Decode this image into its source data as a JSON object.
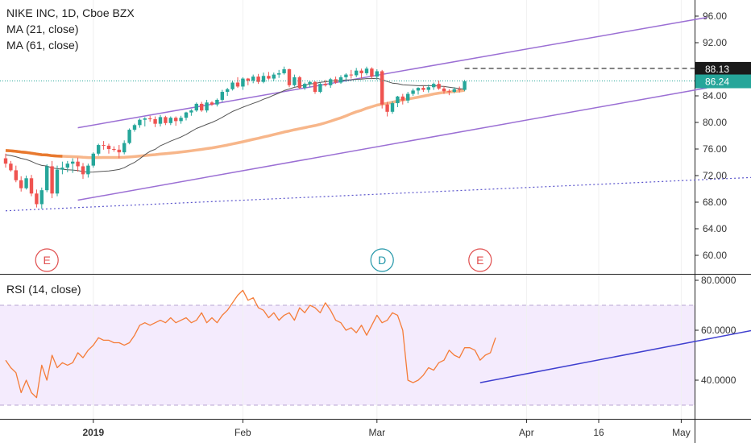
{
  "main_legend": {
    "title": "NIKE INC, 1D, Cboe BZX",
    "ma21": "MA (21, close)",
    "ma61": "MA (61, close)"
  },
  "rsi_legend": {
    "title": "RSI (14, close)"
  },
  "chart_data": [
    {
      "type": "candlestick",
      "ylim": [
        57.5,
        97.5
      ],
      "yticks": [
        "96.00",
        "92.00",
        "88.00",
        "84.00",
        "80.00",
        "76.00",
        "72.00",
        "68.00",
        "64.00",
        "60.00"
      ],
      "price_labels": [
        {
          "label": "88.13",
          "value": 88.13
        },
        {
          "label": "86.24",
          "value": 86.24
        }
      ],
      "ohlc": [
        [
          74.6,
          75.3,
          73.2,
          73.8
        ],
        [
          73.8,
          74.2,
          72.6,
          72.8
        ],
        [
          72.8,
          73.5,
          71.0,
          71.3
        ],
        [
          71.3,
          71.9,
          69.6,
          70.1
        ],
        [
          70.1,
          72.0,
          69.9,
          71.6
        ],
        [
          71.6,
          72.1,
          68.9,
          69.3
        ],
        [
          69.3,
          69.9,
          67.2,
          67.7
        ],
        [
          67.7,
          70.2,
          67.0,
          69.8
        ],
        [
          69.8,
          73.7,
          69.5,
          73.4
        ],
        [
          73.4,
          74.2,
          68.6,
          69.3
        ],
        [
          69.3,
          73.5,
          68.9,
          72.9
        ],
        [
          72.9,
          74.1,
          72.2,
          73.2
        ],
        [
          73.2,
          74.2,
          72.5,
          73.8
        ],
        [
          73.8,
          74.6,
          72.4,
          74.1
        ],
        [
          74.1,
          74.7,
          72.6,
          73.4
        ],
        [
          73.4,
          73.9,
          71.5,
          72.2
        ],
        [
          72.2,
          73.8,
          71.7,
          73.5
        ],
        [
          73.5,
          75.5,
          73.2,
          75.3
        ],
        [
          75.3,
          76.8,
          75.0,
          76.6
        ],
        [
          76.6,
          77.2,
          75.9,
          76.5
        ],
        [
          76.5,
          76.8,
          75.3,
          76.0
        ],
        [
          76.0,
          76.4,
          75.6,
          75.9
        ],
        [
          75.9,
          76.6,
          74.6,
          75.5
        ],
        [
          75.5,
          77.3,
          75.2,
          76.9
        ],
        [
          76.9,
          79.1,
          76.7,
          78.9
        ],
        [
          78.9,
          79.8,
          78.6,
          79.6
        ],
        [
          79.6,
          80.6,
          79.2,
          80.4
        ],
        [
          80.4,
          80.8,
          79.4,
          80.6
        ],
        [
          80.6,
          81.0,
          80.1,
          80.5
        ],
        [
          80.5,
          80.9,
          79.3,
          79.8
        ],
        [
          79.8,
          81.1,
          79.4,
          80.8
        ],
        [
          80.8,
          81.0,
          79.6,
          79.9
        ],
        [
          79.9,
          80.9,
          79.6,
          80.7
        ],
        [
          80.7,
          80.9,
          79.5,
          80.2
        ],
        [
          80.2,
          81.0,
          79.8,
          80.7
        ],
        [
          80.7,
          81.6,
          80.3,
          81.5
        ],
        [
          81.5,
          82.0,
          81.0,
          81.8
        ],
        [
          81.8,
          83.0,
          81.6,
          82.8
        ],
        [
          82.8,
          83.1,
          81.6,
          81.8
        ],
        [
          81.8,
          83.4,
          81.5,
          83.0
        ],
        [
          83.0,
          83.2,
          82.5,
          82.7
        ],
        [
          82.7,
          83.6,
          82.4,
          83.4
        ],
        [
          83.4,
          84.9,
          83.1,
          84.6
        ],
        [
          84.6,
          85.2,
          84.0,
          85.0
        ],
        [
          85.0,
          86.3,
          84.8,
          86.0
        ],
        [
          86.0,
          86.8,
          85.2,
          85.4
        ],
        [
          85.4,
          86.8,
          84.9,
          86.6
        ],
        [
          86.6,
          86.7,
          85.6,
          86.3
        ],
        [
          86.3,
          87.2,
          85.9,
          86.9
        ],
        [
          86.9,
          87.3,
          85.8,
          86.1
        ],
        [
          86.1,
          87.5,
          85.9,
          87.0
        ],
        [
          87.0,
          87.6,
          86.4,
          86.6
        ],
        [
          86.6,
          87.5,
          86.3,
          87.2
        ],
        [
          87.2,
          87.9,
          86.7,
          87.4
        ],
        [
          87.4,
          88.4,
          87.2,
          88.0
        ],
        [
          88.0,
          88.1,
          85.3,
          85.6
        ],
        [
          85.6,
          87.2,
          85.4,
          86.8
        ],
        [
          86.8,
          87.0,
          85.0,
          85.2
        ],
        [
          85.2,
          86.0,
          84.9,
          85.8
        ],
        [
          85.8,
          86.3,
          85.3,
          86.1
        ],
        [
          86.1,
          86.2,
          84.3,
          84.6
        ],
        [
          84.6,
          86.0,
          84.4,
          85.8
        ],
        [
          85.8,
          86.4,
          85.4,
          85.6
        ],
        [
          85.6,
          86.7,
          85.2,
          86.5
        ],
        [
          86.5,
          86.9,
          85.8,
          86.0
        ],
        [
          86.0,
          87.1,
          85.8,
          86.8
        ],
        [
          86.8,
          87.4,
          86.1,
          87.2
        ],
        [
          87.2,
          87.9,
          86.6,
          87.1
        ],
        [
          87.1,
          88.2,
          86.8,
          87.8
        ],
        [
          87.8,
          88.1,
          86.6,
          87.4
        ],
        [
          87.4,
          88.4,
          87.1,
          88.1
        ],
        [
          88.1,
          88.3,
          86.6,
          86.9
        ],
        [
          86.9,
          88.0,
          86.4,
          87.7
        ],
        [
          87.7,
          87.9,
          82.1,
          82.7
        ],
        [
          82.7,
          83.1,
          80.9,
          81.6
        ],
        [
          81.6,
          83.2,
          81.3,
          82.9
        ],
        [
          82.9,
          84.0,
          82.3,
          83.9
        ],
        [
          83.9,
          84.3,
          82.7,
          83.3
        ],
        [
          83.3,
          84.6,
          82.9,
          84.3
        ],
        [
          84.3,
          85.1,
          84.0,
          84.8
        ],
        [
          84.8,
          85.3,
          84.2,
          85.2
        ],
        [
          85.2,
          85.5,
          84.6,
          84.9
        ],
        [
          84.9,
          85.7,
          84.5,
          85.3
        ],
        [
          85.3,
          86.0,
          84.9,
          85.8
        ],
        [
          85.8,
          86.3,
          84.9,
          85.1
        ],
        [
          85.1,
          85.5,
          84.3,
          84.7
        ],
        [
          84.7,
          85.0,
          84.1,
          84.6
        ],
        [
          84.6,
          85.3,
          84.4,
          85.0
        ],
        [
          85.0,
          85.4,
          84.5,
          84.9
        ],
        [
          84.9,
          86.4,
          84.7,
          86.2
        ]
      ],
      "channel_upper": [
        [
          14,
          79.2
        ],
        [
          136,
          95.8
        ]
      ],
      "channel_lower": [
        [
          14,
          68.3
        ],
        [
          136,
          85.2
        ]
      ],
      "trend_dotted": [
        [
          0,
          66.7
        ],
        [
          150,
          71.9
        ]
      ],
      "dashed_level": {
        "value": 88.13,
        "x_start": 89
      },
      "events": [
        {
          "label": "E",
          "x": 8
        },
        {
          "label": "D",
          "x": 73
        },
        {
          "label": "E",
          "x": 92
        }
      ]
    },
    {
      "type": "line",
      "title": "RSI (14, close)",
      "ylim": [
        27,
        82
      ],
      "yticks": [
        "80.0000",
        "60.0000",
        "40.0000"
      ],
      "band": [
        30,
        70
      ],
      "values": [
        48,
        45,
        43,
        35,
        40,
        35,
        33,
        46,
        40,
        50,
        45,
        47,
        46,
        47,
        51,
        49,
        52,
        54,
        57,
        56,
        56,
        55,
        55,
        54,
        55,
        58,
        62,
        63,
        62,
        63,
        64,
        63,
        65,
        63,
        64,
        65,
        63,
        64,
        67,
        63,
        65,
        63,
        66,
        68,
        71,
        74,
        76,
        72,
        73,
        69,
        68,
        65,
        67,
        64,
        66,
        67,
        64,
        69,
        67,
        70,
        69,
        67,
        71,
        68,
        64,
        63,
        60,
        61,
        59,
        62,
        58,
        62,
        66,
        63,
        64,
        67,
        66,
        60,
        40,
        39,
        40,
        42,
        45,
        44,
        47,
        48,
        52,
        50,
        49,
        53,
        53,
        52,
        48,
        50,
        51,
        57
      ],
      "trendline": [
        [
          92,
          39
        ],
        [
          150,
          62
        ]
      ]
    }
  ],
  "x_ticks": [
    {
      "label": "2019",
      "x": 17
    },
    {
      "label": "Feb",
      "x": 46
    },
    {
      "label": "Mar",
      "x": 72
    },
    {
      "label": "Apr",
      "x": 101
    },
    {
      "label": "16",
      "x": 115
    },
    {
      "label": "May",
      "x": 131
    }
  ],
  "colors": {
    "up": "#26a69a",
    "down": "#ef5350",
    "ma21": "#555555",
    "ma61": "#f7b68a",
    "ma61_left": "#e8792f",
    "channel": "#9b6fd4",
    "trend_dotted": "#5b55cc",
    "rsi_line": "#f57c38",
    "rsi_band": "#f4ebfd",
    "rsi_trend": "#3f3fcf",
    "price_dark": "#1a1a1a",
    "price_teal": "#26a69a"
  }
}
